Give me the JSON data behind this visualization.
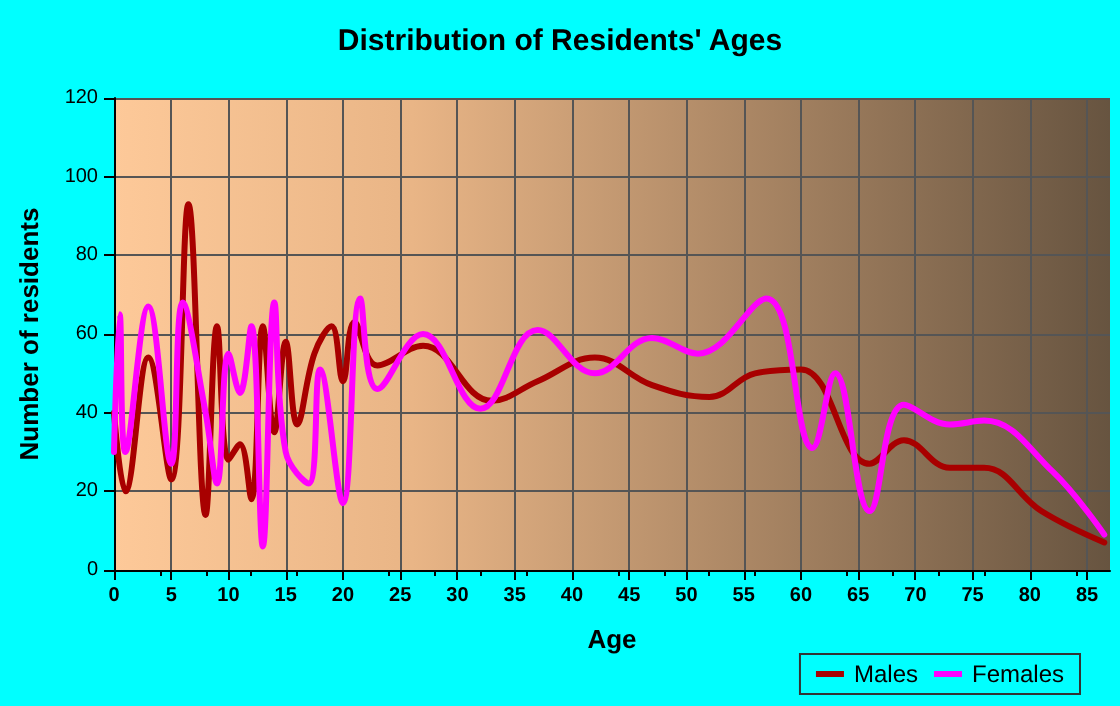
{
  "chart_data": {
    "type": "line",
    "title": "Distribution of Residents' Ages",
    "xlabel": "Age",
    "ylabel": "Number of residents",
    "xlim": [
      0,
      87
    ],
    "xticks": [
      0,
      5,
      10,
      15,
      20,
      25,
      30,
      35,
      40,
      45,
      50,
      55,
      60,
      65,
      70,
      75,
      80,
      85
    ],
    "ylim": [
      0,
      120
    ],
    "yticks": [
      0,
      20,
      40,
      60,
      80,
      100,
      120
    ],
    "grid": true,
    "legend": "bottom right",
    "marker": "none",
    "line_style": "solid",
    "series": [
      {
        "name": "Males",
        "color": "#a80000",
        "x": [
          0,
          1,
          3,
          5,
          6.5,
          8,
          9,
          10,
          11,
          12,
          13,
          14,
          15,
          16,
          17.5,
          19,
          20,
          21,
          23,
          27,
          33,
          37,
          42,
          47,
          52,
          56,
          60,
          66,
          69,
          73,
          76,
          81,
          86.5
        ],
        "values": [
          40,
          20,
          54,
          23,
          93,
          14,
          62,
          28,
          32,
          18,
          62,
          35,
          58,
          37,
          55,
          62,
          48,
          63,
          52,
          57,
          43,
          48,
          54,
          47,
          44,
          50,
          51,
          27,
          33,
          26,
          26,
          15,
          7
        ]
      },
      {
        "name": "Females",
        "color": "#ff00ff",
        "x": [
          0,
          0.5,
          1,
          3,
          5,
          6,
          8,
          9,
          10,
          11,
          12,
          13,
          14,
          15,
          17,
          18,
          20,
          21.5,
          23,
          27,
          32,
          37,
          42,
          47,
          51,
          57,
          61,
          63,
          66,
          69,
          73,
          76,
          82,
          86.5
        ],
        "values": [
          30,
          65,
          30,
          67,
          27,
          68,
          40,
          22,
          55,
          45,
          62,
          6,
          68,
          30,
          22,
          51,
          17,
          69,
          46,
          60,
          41,
          61,
          50,
          59,
          55,
          69,
          31,
          50,
          15,
          42,
          37,
          38,
          25,
          9
        ]
      }
    ]
  }
}
